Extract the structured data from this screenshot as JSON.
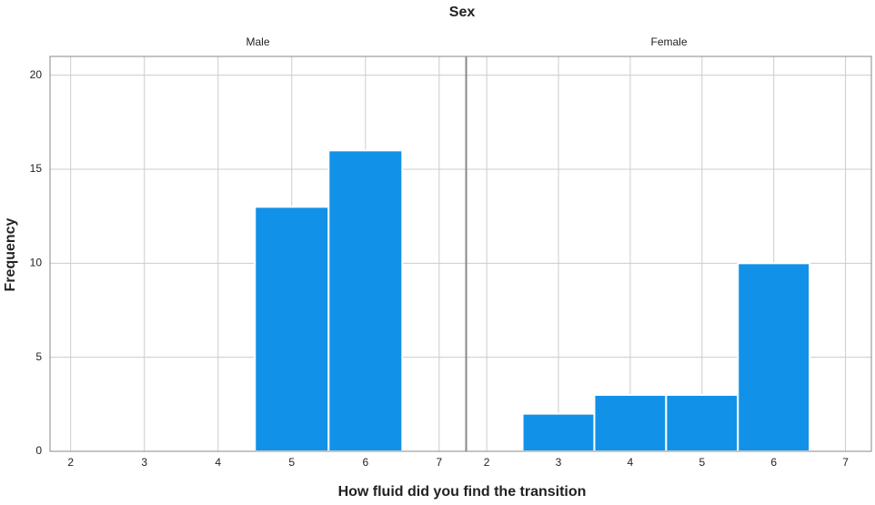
{
  "chart_data": {
    "type": "histogram",
    "title": "Sex",
    "x_label": "How fluid did you find the transition",
    "y_label": "Frequency",
    "color": "#1192e8",
    "grid": true,
    "ylim": [
      0,
      21
    ],
    "yticks": [
      0,
      5,
      10,
      15,
      20
    ],
    "xlim": [
      1.72,
      7.36
    ],
    "xticks": [
      2,
      3,
      4,
      5,
      6,
      7
    ],
    "facets": [
      {
        "name": "Male",
        "bins": [
          4.5,
          5.5,
          6.5
        ],
        "counts": [
          13,
          16
        ]
      },
      {
        "name": "Female",
        "bins": [
          2.5,
          3.5,
          4.5,
          5.5,
          6.5
        ],
        "counts": [
          2,
          3,
          3,
          10
        ]
      }
    ]
  }
}
